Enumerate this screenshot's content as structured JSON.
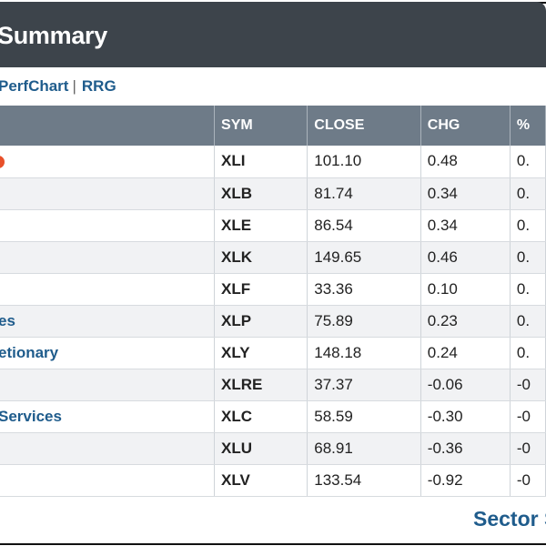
{
  "header": {
    "title": "Summary"
  },
  "links": {
    "perfchart": "PerfChart",
    "separator": "|",
    "rrg": "RRG"
  },
  "table": {
    "columns": [
      "",
      "SYM",
      "CLOSE",
      "CHG",
      "%"
    ],
    "rows": [
      {
        "name": "",
        "sym": "XLI",
        "close": "101.10",
        "chg": "0.48",
        "pct": "0."
      },
      {
        "name": "",
        "sym": "XLB",
        "close": "81.74",
        "chg": "0.34",
        "pct": "0."
      },
      {
        "name": "",
        "sym": "XLE",
        "close": "86.54",
        "chg": "0.34",
        "pct": "0."
      },
      {
        "name": "",
        "sym": "XLK",
        "close": "149.65",
        "chg": "0.46",
        "pct": "0."
      },
      {
        "name": "",
        "sym": "XLF",
        "close": "33.36",
        "chg": "0.10",
        "pct": "0."
      },
      {
        "name": "es",
        "sym": "XLP",
        "close": "75.89",
        "chg": "0.23",
        "pct": "0."
      },
      {
        "name": "etionary",
        "sym": "XLY",
        "close": "148.18",
        "chg": "0.24",
        "pct": "0."
      },
      {
        "name": "",
        "sym": "XLRE",
        "close": "37.37",
        "chg": "-0.06",
        "pct": "-0"
      },
      {
        "name": " Services",
        "sym": "XLC",
        "close": "58.59",
        "chg": "-0.30",
        "pct": "-0"
      },
      {
        "name": "",
        "sym": "XLU",
        "close": "68.91",
        "chg": "-0.36",
        "pct": "-0"
      },
      {
        "name": "",
        "sym": "XLV",
        "close": "133.54",
        "chg": "-0.92",
        "pct": "-0"
      }
    ]
  },
  "footer": {
    "link": "Sector S"
  },
  "colors": {
    "header_bg": "#3d444b",
    "table_header_bg": "#6e7b88",
    "link": "#1f5c8c",
    "badge": "#e8502a"
  },
  "icons": {
    "row_badge": "status-dot-icon"
  }
}
